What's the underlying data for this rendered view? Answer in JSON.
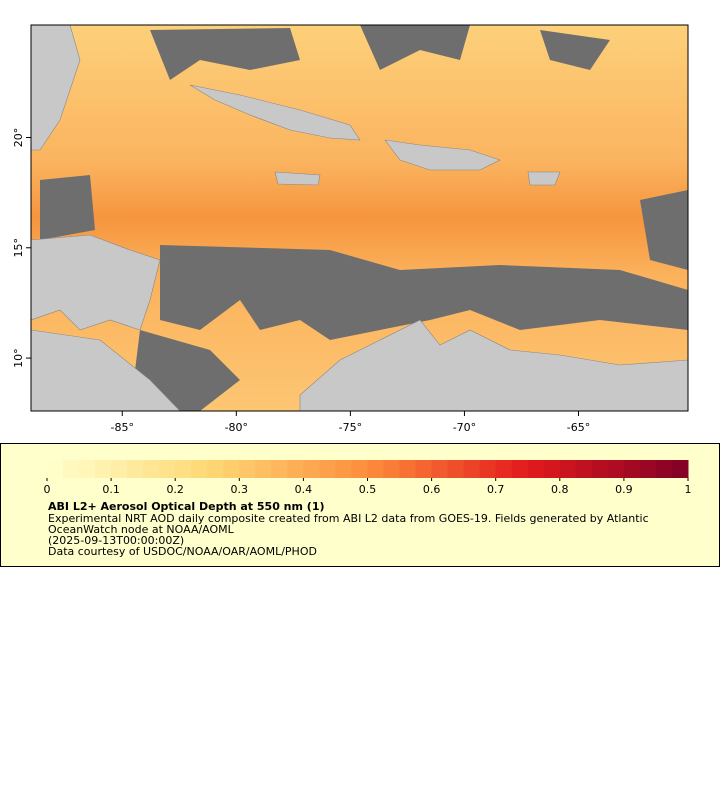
{
  "map": {
    "lonlim": [
      -89,
      -60.2
    ],
    "latlim": [
      7.6,
      25.1
    ],
    "lonticks": [
      {
        "value": -85,
        "label": "-85°"
      },
      {
        "value": -80,
        "label": "-80°"
      },
      {
        "value": -75,
        "label": "-75°"
      },
      {
        "value": -70,
        "label": "-70°"
      },
      {
        "value": -65,
        "label": "-65°"
      }
    ],
    "latticks": [
      {
        "value": 10,
        "label": "10°"
      },
      {
        "value": 15,
        "label": "15°"
      },
      {
        "value": 20,
        "label": "20°"
      }
    ],
    "colorbar": {
      "lim": [
        0,
        1
      ],
      "ticks": [
        0,
        0.1,
        0.2,
        0.3,
        0.4,
        0.5,
        0.6,
        0.7,
        0.8,
        0.9,
        1
      ]
    },
    "title": "ABI L2+ Aerosol Optical Depth at 550 nm (1)",
    "description": [
      "Experimental NRT AOD daily composite created from ABI L2 data from GOES-19. Fields generated by Atlantic",
      "OceanWatch node at NOAA/AOML"
    ],
    "time": "(2025-09-13T00:00:00Z)",
    "credit": "Data courtesy of USDOC/NOAA/OAR/AOML/PHOD"
  }
}
